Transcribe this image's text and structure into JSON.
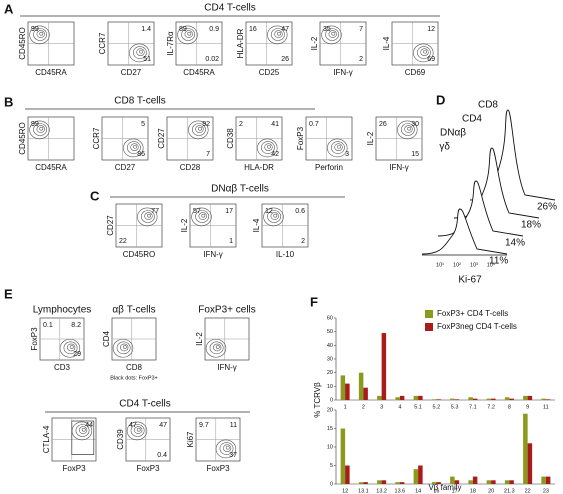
{
  "panel_letters": [
    "A",
    "B",
    "C",
    "D",
    "E",
    "F"
  ],
  "panel_a": {
    "title": "CD4 T-cells",
    "plots": [
      {
        "y_label": "CD45RO",
        "x_label": "CD45RA",
        "quadrants": {
          "tl": "99"
        }
      },
      {
        "y_label": "CCR7",
        "x_label": "CD27",
        "quadrants": {
          "tr": "1.4",
          "br": "51"
        }
      },
      {
        "y_label": "IL-7Rα",
        "x_label": "CD45RA",
        "quadrants": {
          "tl": "89",
          "tr": "0.9",
          "br": "0.02"
        }
      },
      {
        "y_label": "HLA-DR",
        "x_label": "CD25",
        "quadrants": {
          "tl": "16",
          "tr": "47",
          "br": "26"
        }
      },
      {
        "y_label": "IL-2",
        "x_label": "IFN-γ",
        "quadrants": {
          "tl": "35",
          "tr": "7",
          "br": "2"
        }
      },
      {
        "y_label": "IL-4",
        "x_label": "CD69",
        "quadrants": {
          "tr": "12",
          "br": "69"
        }
      }
    ]
  },
  "panel_b": {
    "title": "CD8 T-cells",
    "plots": [
      {
        "y_label": "CD45RO",
        "x_label": "CD45RA",
        "quadrants": {
          "tl": "99"
        }
      },
      {
        "y_label": "CCR7",
        "x_label": "CD27",
        "quadrants": {
          "tr": "5",
          "br": "86"
        }
      },
      {
        "y_label": "CD27",
        "x_label": "CD28",
        "quadrants": {
          "tr": "92",
          "br": "7"
        }
      },
      {
        "y_label": "CD38",
        "x_label": "HLA-DR",
        "quadrants": {
          "tl": "2",
          "tr": "41",
          "br": "42"
        }
      },
      {
        "y_label": "FoxP3",
        "x_label": "Perforin",
        "quadrants": {
          "tl": "0.7",
          "br": "3"
        }
      },
      {
        "y_label": "IL-2",
        "x_label": "IFN-γ",
        "quadrants": {
          "tl": "26",
          "tr": "30",
          "br": "15"
        }
      }
    ]
  },
  "panel_c": {
    "title": "DNαβ T-cells",
    "plots": [
      {
        "y_label": "CD27",
        "x_label": "CD45RO",
        "quadrants": {
          "tr": "77",
          "bl": "22"
        }
      },
      {
        "y_label": "IL-2",
        "x_label": "IFN-γ",
        "quadrants": {
          "tl": "57",
          "tr": "17",
          "br": "1"
        }
      },
      {
        "y_label": "IL-4",
        "x_label": "IL-10",
        "quadrants": {
          "tl": "12",
          "tr": "0.6",
          "br": "2"
        }
      }
    ]
  },
  "panel_d": {
    "populations": [
      "CD8",
      "CD4",
      "DNαβ",
      "γδ"
    ],
    "percentages": [
      "26%",
      "18%",
      "14%",
      "11%"
    ],
    "x_label": "Ki-67",
    "x_ticks": [
      "10¹",
      "10²",
      "10³",
      "10⁴"
    ]
  },
  "panel_e": {
    "top_plots": [
      {
        "title": "Lymphocytes",
        "y_label": "FoxP3",
        "x_label": "CD3",
        "quadrants": {
          "tl": "0.1",
          "tr": "8.2",
          "br": "29"
        }
      },
      {
        "title": "αβ T-cells",
        "y_label": "CD4",
        "x_label": "CD8",
        "note": "Black dots: FoxP3+"
      },
      {
        "title": "FoxP3+ cells",
        "y_label": "IL-2",
        "x_label": "IFN-γ"
      }
    ],
    "subtitle": "CD4 T-cells",
    "bottom_plots": [
      {
        "y_label": "CTLA-4",
        "x_label": "FoxP3",
        "quadrants": {
          "tr": "44"
        }
      },
      {
        "y_label": "CD39",
        "x_label": "FoxP3",
        "quadrants": {
          "tl": "47",
          "tr": "47",
          "br": "0.4"
        }
      },
      {
        "y_label": "Ki67",
        "x_label": "FoxP3",
        "quadrants": {
          "tl": "9.7",
          "tr": "11",
          "br": "37"
        }
      }
    ]
  },
  "chart_data": [
    {
      "type": "bar",
      "y_label": "% TCRVβ",
      "categories": [
        "1",
        "2",
        "3",
        "4",
        "5.1",
        "5.2",
        "5.3",
        "7.1",
        "7.2",
        "8",
        "9",
        "11"
      ],
      "series": [
        {
          "name": "FoxP3+ CD4 T-cells",
          "color": "#8a9a1c",
          "values": [
            18,
            20,
            3,
            2,
            3,
            0.5,
            1,
            2,
            1,
            2,
            3,
            1
          ]
        },
        {
          "name": "FoxP3neg CD4 T-cells",
          "color": "#a81c1c",
          "values": [
            12,
            9,
            49,
            3,
            3,
            0.5,
            0.5,
            1,
            1,
            1,
            3,
            0.5
          ]
        }
      ],
      "ylim": [
        0,
        60
      ],
      "yticks": [
        0,
        10,
        20,
        30,
        40,
        50,
        60
      ]
    },
    {
      "type": "bar",
      "x_label": "Vβ family",
      "categories": [
        "12",
        "13.1",
        "13.2",
        "13.6",
        "14",
        "16",
        "17",
        "18",
        "20",
        "21.3",
        "22",
        "23"
      ],
      "series": [
        {
          "color": "#8a9a1c",
          "values": [
            15,
            0.5,
            1,
            0.5,
            4,
            0.5,
            2,
            1,
            1,
            1,
            19,
            2
          ]
        },
        {
          "color": "#a81c1c",
          "values": [
            5,
            0.5,
            1,
            0.5,
            5,
            0.5,
            1,
            2,
            1,
            1,
            11,
            2
          ]
        }
      ],
      "ylim": [
        0,
        20
      ],
      "yticks": [
        0,
        5,
        10,
        15,
        20
      ]
    }
  ]
}
